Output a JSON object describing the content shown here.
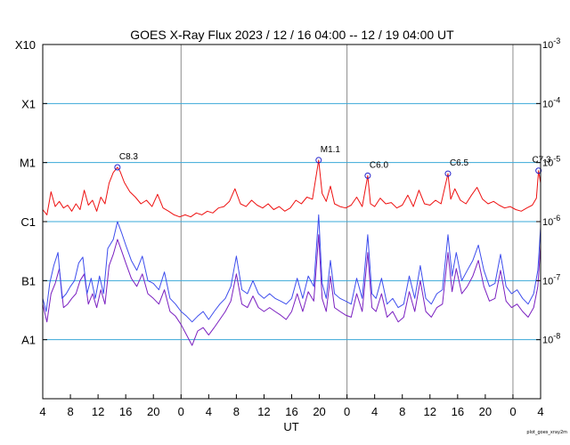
{
  "chart_data": {
    "type": "line",
    "title": "GOES X-Ray Flux   2023 / 12 / 16   04:00 -- 12 / 19   04:00   UT",
    "xlabel": "UT",
    "x_range_hours": [
      4,
      76
    ],
    "x_tick_labels": [
      "4",
      "8",
      "12",
      "16",
      "20",
      "0",
      "4",
      "8",
      "12",
      "16",
      "20",
      "0",
      "4",
      "8",
      "12",
      "16",
      "20",
      "0",
      "4"
    ],
    "day_boundaries_hours": [
      24,
      48,
      72
    ],
    "y_scale": "log",
    "ylim": [
      1e-09,
      0.001
    ],
    "left_class_labels": [
      "X10",
      "X1",
      "M1",
      "C1",
      "B1",
      "A1"
    ],
    "right_tick_labels": [
      {
        "base": "10",
        "exp": "-3"
      },
      {
        "base": "10",
        "exp": "-4"
      },
      {
        "base": "10",
        "exp": "-5"
      },
      {
        "base": "10",
        "exp": "-6"
      },
      {
        "base": "10",
        "exp": "-7"
      },
      {
        "base": "10",
        "exp": "-8"
      }
    ],
    "grid": true,
    "credit": "plot_goes_xray2m",
    "colors": {
      "long": "#ee1111",
      "short_blue": "#3d4ded",
      "short_purple": "#7a1fc0",
      "grid_h": "#3aa8d8",
      "grid_v": "#8c8c8c",
      "marker": "#2222cc"
    },
    "flares": [
      {
        "label": "C8.3",
        "x": 14.8,
        "y": 8.3e-06
      },
      {
        "label": "M1.1",
        "x": 43.9,
        "y": 1.1e-05
      },
      {
        "label": "C6.0",
        "x": 51.0,
        "y": 6e-06
      },
      {
        "label": "C6.5",
        "x": 62.6,
        "y": 6.5e-06
      },
      {
        "label": "C7.3",
        "x": 75.7,
        "y": 7.3e-06
      }
    ],
    "series": [
      {
        "key": "long",
        "x": [
          4.0,
          4.6,
          5.2,
          5.8,
          6.4,
          7.0,
          7.6,
          8.2,
          8.8,
          9.4,
          10.0,
          10.6,
          11.2,
          11.8,
          12.4,
          13.0,
          13.6,
          14.2,
          14.8,
          15.2,
          15.8,
          16.6,
          17.4,
          18.2,
          19.0,
          19.8,
          20.6,
          21.4,
          22.2,
          23.0,
          23.8,
          24.6,
          25.4,
          26.2,
          27.0,
          27.8,
          28.6,
          29.4,
          30.2,
          31.0,
          31.8,
          32.6,
          33.4,
          34.2,
          35.0,
          35.8,
          36.6,
          37.4,
          38.2,
          39.0,
          39.8,
          40.6,
          41.4,
          42.2,
          43.0,
          43.9,
          44.4,
          45.0,
          45.6,
          46.2,
          47.0,
          47.8,
          48.6,
          49.4,
          50.2,
          51.0,
          51.4,
          52.0,
          52.8,
          53.6,
          54.4,
          55.2,
          56.0,
          56.8,
          57.6,
          58.4,
          59.2,
          60.0,
          60.8,
          61.6,
          62.6,
          63.0,
          63.6,
          64.4,
          65.2,
          66.0,
          66.8,
          67.6,
          68.4,
          69.2,
          70.0,
          70.8,
          71.6,
          72.4,
          73.2,
          74.0,
          74.8,
          75.4,
          75.7,
          76.0
        ],
        "y": [
          1.6e-06,
          1.3e-06,
          3.2e-06,
          1.8e-06,
          2.2e-06,
          1.7e-06,
          1.9e-06,
          1.5e-06,
          2e-06,
          1.6e-06,
          3.4e-06,
          1.9e-06,
          2.3e-06,
          1.5e-06,
          2.6e-06,
          2e-06,
          4.5e-06,
          6.8e-06,
          8.3e-06,
          7e-06,
          4.6e-06,
          3.2e-06,
          2.6e-06,
          2e-06,
          2.3e-06,
          1.8e-06,
          2.9e-06,
          1.7e-06,
          1.5e-06,
          1.3e-06,
          1.2e-06,
          1.3e-06,
          1.2e-06,
          1.4e-06,
          1.3e-06,
          1.5e-06,
          1.4e-06,
          1.7e-06,
          1.8e-06,
          2.2e-06,
          3.6e-06,
          2e-06,
          1.8e-06,
          2.3e-06,
          1.9e-06,
          1.7e-06,
          2e-06,
          1.6e-06,
          1.8e-06,
          1.5e-06,
          1.7e-06,
          2.3e-06,
          2e-06,
          2.6e-06,
          2.4e-06,
          1.1e-05,
          3e-06,
          2.2e-06,
          4e-06,
          2e-06,
          1.8e-06,
          1.7e-06,
          1.9e-06,
          2.6e-06,
          1.8e-06,
          6e-06,
          2e-06,
          1.8e-06,
          2.5e-06,
          2e-06,
          2.1e-06,
          1.7e-06,
          1.9e-06,
          2.8e-06,
          1.8e-06,
          3.4e-06,
          2e-06,
          1.9e-06,
          2.3e-06,
          2e-06,
          6.5e-06,
          2.4e-06,
          3.6e-06,
          2.3e-06,
          2e-06,
          2.8e-06,
          3.8e-06,
          2.4e-06,
          2e-06,
          2.2e-06,
          1.9e-06,
          1.7e-06,
          1.8e-06,
          1.6e-06,
          1.5e-06,
          1.7e-06,
          1.9e-06,
          2.5e-06,
          7.3e-06,
          4.5e-06
        ]
      },
      {
        "key": "short_blue",
        "x": [
          4.0,
          4.5,
          5.0,
          5.6,
          6.2,
          6.8,
          7.4,
          8.0,
          8.6,
          9.2,
          9.8,
          10.4,
          11.0,
          11.6,
          12.2,
          12.8,
          13.4,
          14.2,
          14.8,
          15.4,
          16.0,
          16.8,
          17.6,
          18.4,
          19.2,
          20.0,
          20.8,
          21.6,
          22.4,
          23.2,
          24.0,
          24.8,
          25.6,
          26.4,
          27.2,
          28.0,
          28.8,
          29.6,
          30.4,
          31.2,
          32.0,
          32.8,
          33.6,
          34.4,
          35.2,
          36.0,
          36.8,
          37.6,
          38.4,
          39.2,
          40.0,
          40.8,
          41.6,
          42.4,
          43.2,
          43.9,
          44.4,
          45.0,
          45.6,
          46.2,
          47.0,
          47.8,
          48.6,
          49.4,
          50.2,
          51.0,
          51.6,
          52.2,
          53.0,
          53.8,
          54.6,
          55.4,
          56.2,
          57.0,
          57.8,
          58.6,
          59.4,
          60.2,
          61.0,
          61.8,
          62.6,
          63.2,
          63.8,
          64.6,
          65.4,
          66.2,
          67.0,
          67.8,
          68.6,
          69.4,
          70.2,
          71.0,
          71.8,
          72.6,
          73.4,
          74.2,
          75.0,
          75.6,
          76.0
        ],
        "y": [
          5e-08,
          3e-08,
          9e-08,
          1.8e-07,
          3e-07,
          5e-08,
          6e-08,
          8e-08,
          1e-07,
          2e-07,
          2.5e-07,
          6e-08,
          1.1e-07,
          5e-08,
          1.2e-07,
          6e-08,
          3.5e-07,
          5e-07,
          1e-06,
          6.5e-07,
          4e-07,
          2.2e-07,
          1.5e-07,
          2.6e-07,
          1e-07,
          9e-08,
          7e-08,
          1.4e-07,
          5e-08,
          4e-08,
          3e-08,
          2.5e-08,
          2e-08,
          2.5e-08,
          3e-08,
          2.2e-08,
          3e-08,
          4e-08,
          5e-08,
          8e-08,
          2.6e-07,
          7e-08,
          6e-08,
          1e-07,
          6e-08,
          5e-08,
          6e-08,
          5e-08,
          4.5e-08,
          4e-08,
          5e-08,
          1.1e-07,
          5e-08,
          1.2e-07,
          8e-08,
          1.3e-06,
          9e-08,
          5e-08,
          2.2e-07,
          6e-08,
          5e-08,
          4.5e-08,
          4e-08,
          1.1e-07,
          5e-08,
          6e-07,
          6e-08,
          5e-08,
          1.1e-07,
          4e-08,
          5e-08,
          3.5e-08,
          4e-08,
          1.2e-07,
          5e-08,
          1.8e-07,
          5e-08,
          4e-08,
          6e-08,
          7e-08,
          6e-07,
          1.2e-07,
          3e-07,
          1e-07,
          1.5e-07,
          2.2e-07,
          4e-07,
          1.5e-07,
          8e-08,
          9e-08,
          2.8e-07,
          8e-08,
          6e-08,
          7e-08,
          5e-08,
          4e-08,
          6e-08,
          1.5e-07,
          8e-07
        ]
      },
      {
        "key": "short_purple",
        "x": [
          4.0,
          4.6,
          5.2,
          5.8,
          6.4,
          7.0,
          7.6,
          8.2,
          8.8,
          9.4,
          10.0,
          10.6,
          11.2,
          11.8,
          12.4,
          13.0,
          13.6,
          14.2,
          14.8,
          15.4,
          16.0,
          16.8,
          17.6,
          18.4,
          19.2,
          20.0,
          20.8,
          21.6,
          22.4,
          23.2,
          24.0,
          24.8,
          25.6,
          26.4,
          27.2,
          28.0,
          28.8,
          29.6,
          30.4,
          31.2,
          32.0,
          32.8,
          33.6,
          34.4,
          35.2,
          36.0,
          36.8,
          37.6,
          38.4,
          39.2,
          40.0,
          40.8,
          41.6,
          42.4,
          43.2,
          43.9,
          44.4,
          45.0,
          45.6,
          46.2,
          47.0,
          47.8,
          48.6,
          49.4,
          50.2,
          51.0,
          51.6,
          52.2,
          53.0,
          53.8,
          54.6,
          55.4,
          56.2,
          57.0,
          57.8,
          58.6,
          59.4,
          60.2,
          61.0,
          61.8,
          62.6,
          63.2,
          63.8,
          64.6,
          65.4,
          66.2,
          67.0,
          67.8,
          68.6,
          69.4,
          70.2,
          71.0,
          71.8,
          72.6,
          73.4,
          74.2,
          75.0,
          75.6,
          76.0
        ],
        "y": [
          4e-08,
          2e-08,
          6e-08,
          9e-08,
          1.6e-07,
          3.5e-08,
          4e-08,
          5e-08,
          6e-08,
          1e-07,
          1.3e-07,
          4e-08,
          6e-08,
          3.5e-08,
          7e-08,
          4e-08,
          1.8e-07,
          2.8e-07,
          5e-07,
          3.2e-07,
          2e-07,
          1.1e-07,
          8e-08,
          1.3e-07,
          6e-08,
          5e-08,
          4e-08,
          7e-08,
          3e-08,
          2.5e-08,
          1.8e-08,
          1.2e-08,
          8e-09,
          1.4e-08,
          1.6e-08,
          1.2e-08,
          1.6e-08,
          2.2e-08,
          3e-08,
          4.5e-08,
          1.3e-07,
          4e-08,
          3.5e-08,
          5.5e-08,
          3.5e-08,
          3e-08,
          3.5e-08,
          3e-08,
          2.6e-08,
          2.2e-08,
          3e-08,
          6e-08,
          3e-08,
          6.5e-08,
          4.5e-08,
          6e-07,
          5e-08,
          3e-08,
          1.2e-07,
          3.5e-08,
          3e-08,
          2.6e-08,
          2.4e-08,
          6e-08,
          3e-08,
          3e-07,
          3.5e-08,
          3e-08,
          6e-08,
          2.4e-08,
          3e-08,
          2e-08,
          2.4e-08,
          6.5e-08,
          3e-08,
          1e-07,
          3e-08,
          2.4e-08,
          3.5e-08,
          4e-08,
          3e-07,
          6.5e-08,
          1.6e-07,
          6e-08,
          8e-08,
          1.2e-07,
          2.2e-07,
          8e-08,
          4.5e-08,
          5e-08,
          1.5e-07,
          4.5e-08,
          3.5e-08,
          4e-08,
          3e-08,
          2.4e-08,
          3.5e-08,
          8e-08,
          4e-07
        ]
      }
    ]
  }
}
